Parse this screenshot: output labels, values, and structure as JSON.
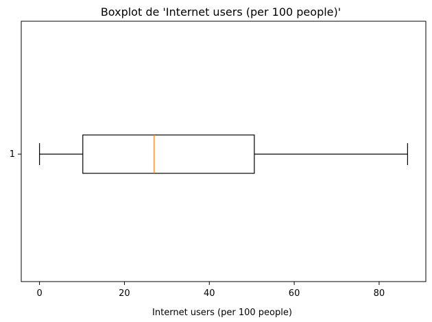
{
  "chart_data": {
    "type": "boxplot",
    "orientation": "horizontal",
    "title": "Boxplot de 'Internet users (per 100 people)'",
    "xlabel": "Internet users (per 100 people)",
    "ylabel": "",
    "xlim": [
      -4.3,
      91
    ],
    "xticks": [
      0,
      20,
      40,
      60,
      80
    ],
    "xtick_labels": [
      "0",
      "20",
      "40",
      "60",
      "80"
    ],
    "categories": [
      "1"
    ],
    "series": [
      {
        "whisker_low": 0.0,
        "q1": 10.2,
        "median": 27.0,
        "q3": 50.6,
        "whisker_high": 86.7
      }
    ],
    "grid": false,
    "colors": {
      "box": "#000000",
      "whisker": "#000000",
      "median": "#ff7f0e",
      "axis": "#000000"
    }
  }
}
